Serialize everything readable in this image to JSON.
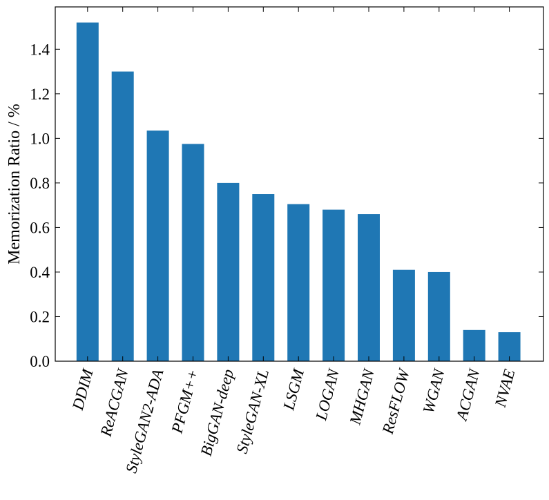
{
  "chart_data": {
    "type": "bar",
    "categories": [
      "DDIM",
      "ReACGAN",
      "StyleGAN2-ADA",
      "PFGM++",
      "BigGAN-deep",
      "StyleGAN-XL",
      "LSGM",
      "LOGAN",
      "MHGAN",
      "ResFLOW",
      "WGAN",
      "ACGAN",
      "NVAE"
    ],
    "values": [
      1.52,
      1.3,
      1.035,
      0.975,
      0.8,
      0.75,
      0.705,
      0.68,
      0.66,
      0.41,
      0.4,
      0.14,
      0.13
    ],
    "title": "",
    "xlabel": "",
    "ylabel": "Memorization Ratio / %",
    "ylim": [
      0,
      1.59
    ],
    "yticks": [
      "0.0",
      "0.2",
      "0.4",
      "0.6",
      "0.8",
      "1.0",
      "1.2",
      "1.4"
    ],
    "grid": false,
    "bar_color": "#1f77b4"
  }
}
